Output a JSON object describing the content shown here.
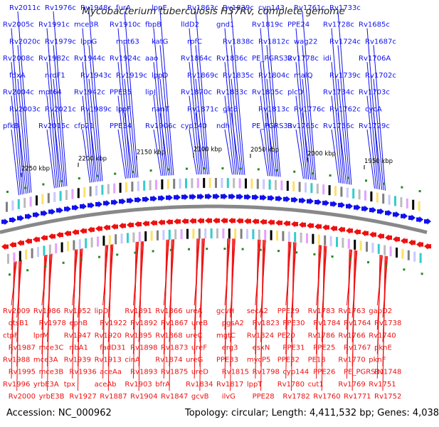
{
  "title": "Mycobacterium tuberculosis H37Rv, complete genome",
  "footer": {
    "accession": "Accession: NC_000962",
    "topology": "Topology: circular; Length: 4,411,532 bp; Genes: 4,038"
  },
  "colors": {
    "forward": "#1010ee",
    "reverse": "#ee1010",
    "backbone": "#888888",
    "gc_marker": "#228b22"
  },
  "scale_ticks": [
    "2250 kbp",
    "2200 kbp",
    "2150 kbp",
    "2100 kbp",
    "2050 kbp",
    "2000 kbp",
    "1950 kbp"
  ],
  "forward_genes": [
    "pfkB",
    "Rv2003c",
    "Rv2004c",
    "fdxA",
    "Rv2008c",
    "Rv2020c",
    "Rv2005c",
    "Rv2011c",
    "Rv2015c",
    "Rv2021c",
    "mpt64",
    "nrdF1",
    "Rv1982c",
    "Rv1979c",
    "Rv1991c",
    "Rv1976c",
    "cfp21",
    "Rv1989c",
    "Rv1942c",
    "Rv1943c",
    "Rv1944c",
    "lppG",
    "mce3R",
    "Rv1948c",
    "PPE34",
    "lppF",
    "PPE35",
    "Rv1919c",
    "Rv1924c",
    "mpt63",
    "Rv1910c",
    "furA",
    "Rv1906c",
    "nanT",
    "lipJ",
    "lppD",
    "aao",
    "katG",
    "fbpB",
    "lppE",
    "cyp140",
    "Rv1871c",
    "Rv1870c",
    "Rv1869c",
    "Rv1864c",
    "rpfC",
    "lldD2",
    "Rv1863c",
    "ndh",
    "glcB",
    "Rv1833c",
    "Rv1835c",
    "Rv1836c",
    "Rv1838c",
    "gnd1",
    "Rv1839c",
    "PE_PGRS33",
    "Rv1813c",
    "Rv1805c",
    "Rv1804c",
    "PE_PGRS32",
    "Rv1812c",
    "Rv1819c",
    "cyp143",
    "Rv1765c",
    "Rv1776c",
    "plcD",
    "malQ",
    "Rv1778c",
    "wag22",
    "PPE24",
    "Rv1761c",
    "Rv1756c",
    "Rv1762c",
    "Rv1734c",
    "Rv1739c",
    "idi",
    "Rv1724c",
    "Rv1728c",
    "Rv1733c",
    "Rv1729c",
    "cycA",
    "Rv1703c",
    "Rv1702c",
    "Rv1706A",
    "Rv1687c",
    "Rv1685c"
  ],
  "reverse_genes": [
    "Rv2009",
    "otsB1",
    "ctpF",
    "Rv1987",
    "Rv1988",
    "Rv1995",
    "Rv1996",
    "Rv2000",
    "Rv1986",
    "Rv1978",
    "lprM",
    "mce3C",
    "mce3A",
    "mce3B",
    "yrbE3A",
    "yrbE3B",
    "Rv1952",
    "ephB",
    "Rv1947",
    "ribA1",
    "Rv1939",
    "Rv1936",
    "tpx",
    "Rv1927",
    "lipD",
    "Rv1922",
    "Rv1920",
    "fadD31",
    "Rv1913",
    "aceAa",
    "aceAb",
    "Rv1887",
    "Rv1891",
    "Rv1892",
    "Rv1895",
    "Rv1898",
    "cinA",
    "Rv1893",
    "Rv1903",
    "Rv1904",
    "Rv1866",
    "Rv1867",
    "Rv1868",
    "Rv1873",
    "Rv1874",
    "Rv1875",
    "bfrA",
    "Rv1847",
    "ureA",
    "ureB",
    "ureC",
    "ureF",
    "ureG",
    "ureD",
    "Rv1834",
    "gcvB",
    "gcvH",
    "pgsA2",
    "mgtC",
    "erg3",
    "PPE33",
    "Rv1815",
    "Rv1817",
    "ilvG",
    "secA2",
    "Rv1823",
    "Rv1824",
    "esxN",
    "mycP5",
    "Rv1798",
    "lppT",
    "PPE28",
    "PPE29",
    "PPE30",
    "PE20",
    "PPE31",
    "PPE32",
    "cyp144",
    "Rv1780",
    "Rv1782",
    "Rv1783",
    "Rv1784",
    "Rv1786",
    "PPE25",
    "PE18",
    "PPE26",
    "cut1",
    "Rv1760",
    "Rv1763",
    "Rv1764",
    "Rv1766",
    "Rv1767",
    "Rv1770",
    "PE_PGRS31",
    "Rv1769",
    "Rv1771",
    "gabD2",
    "Rv1738",
    "Rv1740",
    "pknE",
    "pknF",
    "Rv1748",
    "Rv1751",
    "Rv1752"
  ]
}
